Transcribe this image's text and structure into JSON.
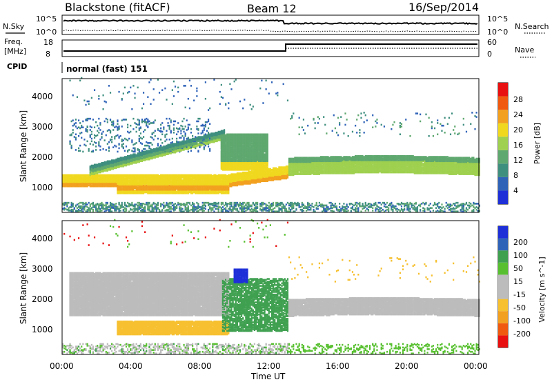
{
  "header": {
    "title": "Blackstone (fitACF)",
    "beam": "Beam 12",
    "date": "16/Sep/2014"
  },
  "noise_panel": {
    "left_label": "N.Sky",
    "right_label": "N.Search",
    "left_ticks": [
      "10^5",
      "10^0"
    ],
    "right_ticks": [
      "10^5",
      "10^0"
    ]
  },
  "freq_panel": {
    "left_label_1": "Freq.",
    "left_label_2": "[MHz]",
    "right_label": "Nave",
    "left_ticks": [
      "18",
      "8"
    ],
    "right_ticks": [
      "60",
      "0"
    ],
    "cpid_label": "CPID",
    "cpid_value": "normal (fast) 151"
  },
  "colors": {
    "power_scale": [
      "#1e2fd8",
      "#2f63b8",
      "#3f8f7f",
      "#5fa86f",
      "#9fd04f",
      "#f0d81f",
      "#f2a01f",
      "#ef5a10",
      "#e81010"
    ],
    "velocity_scale": [
      "#e81010",
      "#ef5a10",
      "#f2a01f",
      "#f6c030",
      "#bcbcbc",
      "#bcbcbc",
      "#58c030",
      "#3fa050",
      "#2f63b8",
      "#1e2fd8"
    ]
  },
  "chart_data": [
    {
      "type": "heatmap",
      "panel": "power",
      "ylabel": "Slant Range [km]",
      "y_ticks": [
        "1000",
        "2000",
        "3000",
        "4000"
      ],
      "ylim": [
        180,
        4500
      ],
      "xlim": [
        0,
        24
      ],
      "colorbar_label": "Power [dB]",
      "colorbar_ticks": [
        "4",
        "8",
        "12",
        "16",
        "20",
        "24",
        "28"
      ],
      "features": [
        {
          "name": "near-range band",
          "x": [
            0,
            13
          ],
          "y": [
            1100,
            1550
          ],
          "value": 24
        },
        {
          "name": "rising band",
          "x": [
            2,
            9
          ],
          "y": [
            1500,
            2550
          ],
          "value": 18
        },
        {
          "name": "lower layer",
          "x": [
            3.2,
            9.6
          ],
          "y": [
            780,
            1150
          ],
          "value": 28
        },
        {
          "name": "far band",
          "x": [
            13,
            24
          ],
          "y": [
            1350,
            1900
          ],
          "value": 20
        }
      ]
    },
    {
      "type": "heatmap",
      "panel": "velocity",
      "ylabel": "Slant Range [km]",
      "y_ticks": [
        "1000",
        "2000",
        "3000",
        "4000"
      ],
      "ylim": [
        180,
        4500
      ],
      "xlim": [
        0,
        24
      ],
      "colorbar_label": "Velocity [m s^-1]",
      "colorbar_ticks": [
        "200",
        "100",
        "50",
        "15",
        "-15",
        "-50",
        "-100",
        "-200"
      ],
      "xlabel": "Time UT",
      "x_ticks": [
        "00:00",
        "04:00",
        "08:00",
        "12:00",
        "16:00",
        "20:00",
        "00:00"
      ],
      "features": [
        {
          "name": "ground scatter",
          "x": [
            0,
            9.5
          ],
          "y": [
            1400,
            2700
          ],
          "value": 0
        },
        {
          "name": "negative velocity layer",
          "x": [
            3.2,
            9.6
          ],
          "y": [
            800,
            1200
          ],
          "value": -50
        },
        {
          "name": "positive region",
          "x": [
            10,
            13
          ],
          "y": [
            1000,
            2500
          ],
          "value": 50
        },
        {
          "name": "strong positive spot",
          "x": [
            9.8,
            10.7
          ],
          "y": [
            2500,
            2900
          ],
          "value": 200
        },
        {
          "name": "far ground scatter",
          "x": [
            13,
            24
          ],
          "y": [
            1350,
            1950
          ],
          "value": 0
        }
      ]
    }
  ]
}
